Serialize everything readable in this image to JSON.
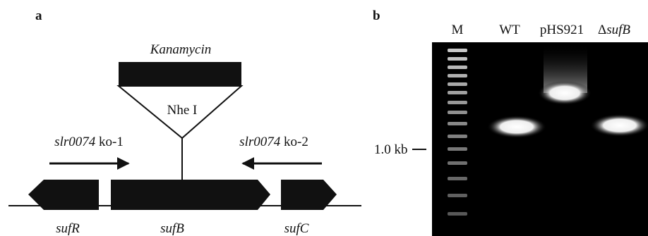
{
  "panel_a": {
    "label": "a",
    "insert": "Kanamycin",
    "site": "Nhe I",
    "primer_left": {
      "gene": "slr0074",
      "suffix": "ko-1"
    },
    "primer_right": {
      "gene": "slr0074",
      "suffix": "ko-2"
    },
    "genes": [
      "sufR",
      "sufB",
      "sufC"
    ]
  },
  "panel_b": {
    "label": "b",
    "lanes": [
      "M",
      "WT",
      "pHS921"
    ],
    "mutant_lane": {
      "prefix": "Δ",
      "gene": "sufB"
    },
    "marker": "1.0 kb"
  }
}
